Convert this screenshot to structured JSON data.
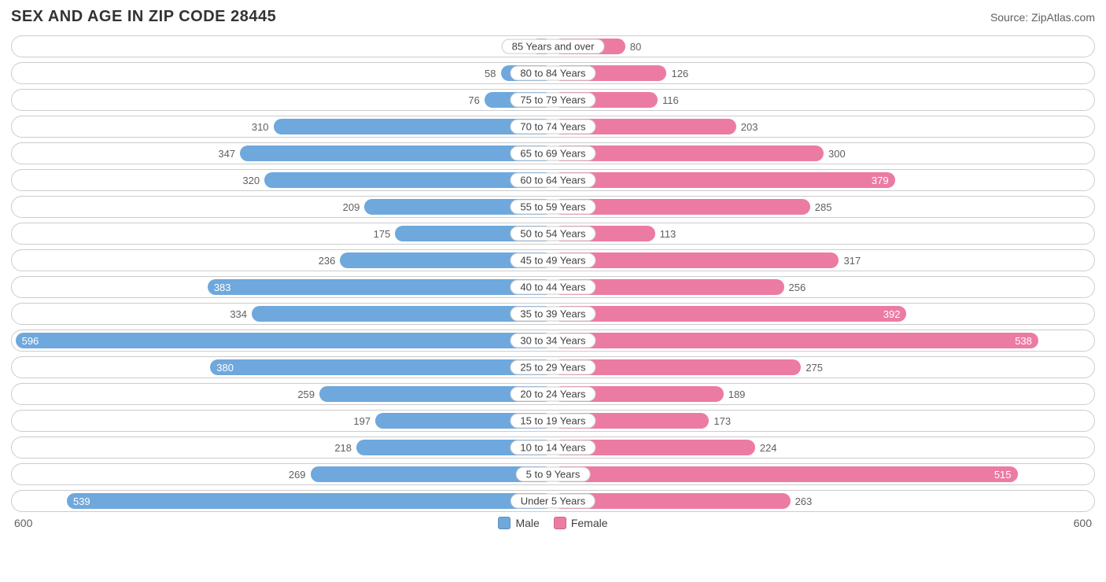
{
  "title": "SEX AND AGE IN ZIP CODE 28445",
  "source": "Source: ZipAtlas.com",
  "chart": {
    "type": "diverging-bar",
    "max": 600,
    "male_color": "#6fa8dc",
    "female_color": "#ec7ba4",
    "track_border": "#cccccc",
    "background": "#ffffff",
    "value_inside_threshold": 370,
    "label_fontsize": 13,
    "title_fontsize": 20,
    "axis_left": "600",
    "axis_right": "600",
    "legend": {
      "male": "Male",
      "female": "Female"
    },
    "rows": [
      {
        "label": "85 Years and over",
        "male": 25,
        "female": 80
      },
      {
        "label": "80 to 84 Years",
        "male": 58,
        "female": 126
      },
      {
        "label": "75 to 79 Years",
        "male": 76,
        "female": 116
      },
      {
        "label": "70 to 74 Years",
        "male": 310,
        "female": 203
      },
      {
        "label": "65 to 69 Years",
        "male": 347,
        "female": 300
      },
      {
        "label": "60 to 64 Years",
        "male": 320,
        "female": 379
      },
      {
        "label": "55 to 59 Years",
        "male": 209,
        "female": 285
      },
      {
        "label": "50 to 54 Years",
        "male": 175,
        "female": 113
      },
      {
        "label": "45 to 49 Years",
        "male": 236,
        "female": 317
      },
      {
        "label": "40 to 44 Years",
        "male": 383,
        "female": 256
      },
      {
        "label": "35 to 39 Years",
        "male": 334,
        "female": 392
      },
      {
        "label": "30 to 34 Years",
        "male": 596,
        "female": 538
      },
      {
        "label": "25 to 29 Years",
        "male": 380,
        "female": 275
      },
      {
        "label": "20 to 24 Years",
        "male": 259,
        "female": 189
      },
      {
        "label": "15 to 19 Years",
        "male": 197,
        "female": 173
      },
      {
        "label": "10 to 14 Years",
        "male": 218,
        "female": 224
      },
      {
        "label": "5 to 9 Years",
        "male": 269,
        "female": 515
      },
      {
        "label": "Under 5 Years",
        "male": 539,
        "female": 263
      }
    ]
  }
}
